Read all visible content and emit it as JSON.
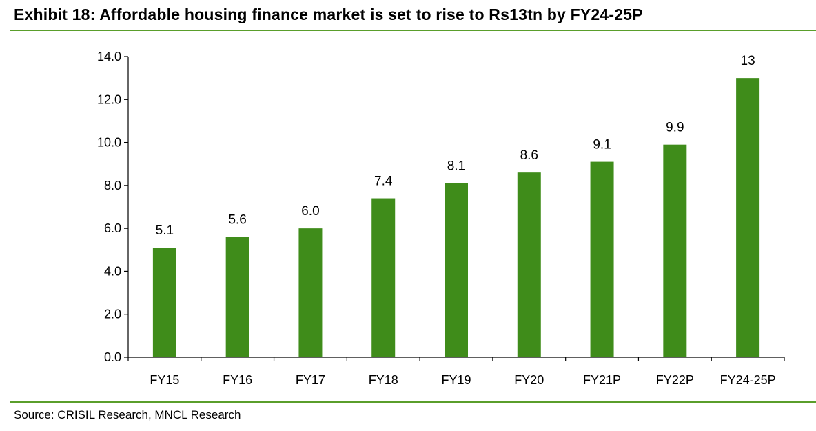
{
  "header": {
    "title": "Exhibit 18: Affordable housing finance market is set to rise to Rs13tn by FY24-25P"
  },
  "footer": {
    "source": "Source: CRISIL Research, MNCL Research"
  },
  "colors": {
    "bar": "#3f8c1a",
    "rule": "#5a9e2b",
    "axis": "#000000"
  },
  "chart_data": {
    "type": "bar",
    "categories": [
      "FY15",
      "FY16",
      "FY17",
      "FY18",
      "FY19",
      "FY20",
      "FY21P",
      "FY22P",
      "FY24-25P"
    ],
    "values": [
      5.1,
      5.6,
      6.0,
      7.4,
      8.1,
      8.6,
      9.1,
      9.9,
      13
    ],
    "data_labels": [
      "5.1",
      "5.6",
      "6.0",
      "7.4",
      "8.1",
      "8.6",
      "9.1",
      "9.9",
      "13"
    ],
    "y_ticks": [
      "0.0",
      "2.0",
      "4.0",
      "6.0",
      "8.0",
      "10.0",
      "12.0",
      "14.0"
    ],
    "ylim": [
      0,
      14
    ],
    "grid": false,
    "legend": "none"
  }
}
